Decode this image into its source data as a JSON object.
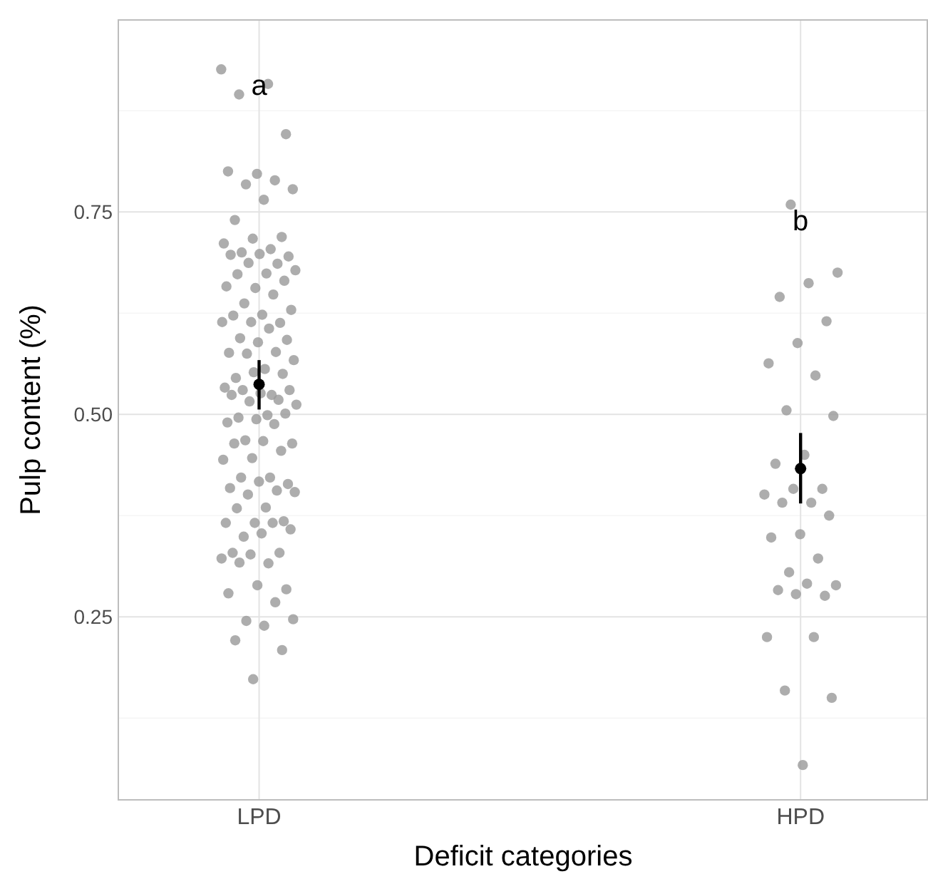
{
  "chart_data": {
    "type": "scatter",
    "xlabel": "Deficit categories",
    "ylabel": "Pulp content (%)",
    "categories": [
      "LPD",
      "HPD"
    ],
    "ylim": [
      0.024,
      0.987
    ],
    "yticks": [
      {
        "value": 0.125,
        "label": null
      },
      {
        "value": 0.25,
        "label": "0.25"
      },
      {
        "value": 0.375,
        "label": null
      },
      {
        "value": 0.5,
        "label": "0.50"
      },
      {
        "value": 0.625,
        "label": null
      },
      {
        "value": 0.75,
        "label": "0.75"
      },
      {
        "value": 0.875,
        "label": null
      }
    ],
    "grid": true,
    "marker": "circle",
    "annotations": [
      "a",
      "b"
    ],
    "series": [
      {
        "color": "#999999",
        "x": [
          "LPD",
          "LPD",
          "LPD",
          "LPD",
          "LPD",
          "LPD",
          "LPD",
          "LPD",
          "LPD",
          "LPD",
          "LPD",
          "LPD",
          "LPD",
          "LPD",
          "LPD",
          "LPD",
          "LPD",
          "LPD",
          "LPD",
          "LPD",
          "LPD",
          "LPD",
          "LPD",
          "LPD",
          "LPD",
          "LPD",
          "LPD",
          "LPD",
          "LPD",
          "LPD",
          "LPD",
          "LPD",
          "LPD",
          "LPD",
          "LPD",
          "LPD",
          "LPD",
          "LPD",
          "LPD",
          "LPD",
          "LPD",
          "LPD",
          "LPD",
          "LPD",
          "LPD",
          "LPD",
          "LPD",
          "LPD",
          "LPD",
          "LPD",
          "LPD",
          "LPD",
          "LPD",
          "LPD",
          "LPD",
          "LPD",
          "LPD",
          "LPD",
          "LPD",
          "LPD",
          "LPD",
          "LPD",
          "LPD",
          "LPD",
          "LPD",
          "LPD",
          "LPD",
          "LPD",
          "LPD",
          "LPD",
          "LPD",
          "LPD",
          "LPD",
          "LPD",
          "LPD",
          "LPD",
          "LPD",
          "LPD",
          "LPD",
          "LPD",
          "LPD",
          "LPD",
          "LPD",
          "LPD",
          "LPD",
          "LPD",
          "LPD",
          "LPD",
          "LPD",
          "LPD",
          "LPD",
          "LPD",
          "LPD",
          "LPD",
          "LPD",
          "LPD",
          "LPD",
          "LPD",
          "LPD",
          "LPD",
          "LPD",
          "LPD"
        ],
        "values": [
          0.926,
          0.908,
          0.895,
          0.846,
          0.797,
          0.8,
          0.789,
          0.784,
          0.778,
          0.765,
          0.74,
          0.719,
          0.717,
          0.711,
          0.704,
          0.7,
          0.695,
          0.698,
          0.697,
          0.686,
          0.687,
          0.678,
          0.674,
          0.673,
          0.665,
          0.656,
          0.658,
          0.648,
          0.637,
          0.629,
          0.623,
          0.622,
          0.613,
          0.614,
          0.614,
          0.606,
          0.594,
          0.592,
          0.589,
          0.576,
          0.577,
          0.575,
          0.567,
          0.556,
          0.545,
          0.55,
          0.552,
          0.533,
          0.524,
          0.53,
          0.53,
          0.526,
          0.524,
          0.518,
          0.516,
          0.512,
          0.499,
          0.496,
          0.501,
          0.494,
          0.49,
          0.488,
          0.468,
          0.464,
          0.467,
          0.464,
          0.455,
          0.446,
          0.444,
          0.422,
          0.422,
          0.414,
          0.417,
          0.409,
          0.406,
          0.401,
          0.404,
          0.385,
          0.384,
          0.368,
          0.366,
          0.366,
          0.366,
          0.349,
          0.358,
          0.353,
          0.329,
          0.329,
          0.327,
          0.322,
          0.316,
          0.317,
          0.284,
          0.289,
          0.279,
          0.268,
          0.245,
          0.247,
          0.239,
          0.221,
          0.209,
          0.173
        ]
      },
      {
        "color": "#999999",
        "x": [
          "HPD",
          "HPD",
          "HPD",
          "HPD",
          "HPD",
          "HPD",
          "HPD",
          "HPD",
          "HPD",
          "HPD",
          "HPD",
          "HPD",
          "HPD",
          "HPD",
          "HPD",
          "HPD",
          "HPD",
          "HPD",
          "HPD",
          "HPD",
          "HPD",
          "HPD",
          "HPD",
          "HPD",
          "HPD",
          "HPD",
          "HPD",
          "HPD",
          "HPD",
          "HPD",
          "HPD",
          "HPD"
        ],
        "values": [
          0.759,
          0.675,
          0.662,
          0.645,
          0.615,
          0.588,
          0.563,
          0.548,
          0.505,
          0.498,
          0.45,
          0.439,
          0.408,
          0.408,
          0.401,
          0.391,
          0.391,
          0.375,
          0.352,
          0.348,
          0.322,
          0.305,
          0.289,
          0.291,
          0.283,
          0.276,
          0.278,
          0.225,
          0.225,
          0.159,
          0.15,
          0.067
        ]
      },
      {
        "color": "#000000",
        "x": [
          "LPD",
          "HPD"
        ],
        "values": [
          0.537,
          0.433
        ],
        "errors": [
          [
            0.506,
            0.567
          ],
          [
            0.39,
            0.477
          ]
        ]
      }
    ]
  }
}
